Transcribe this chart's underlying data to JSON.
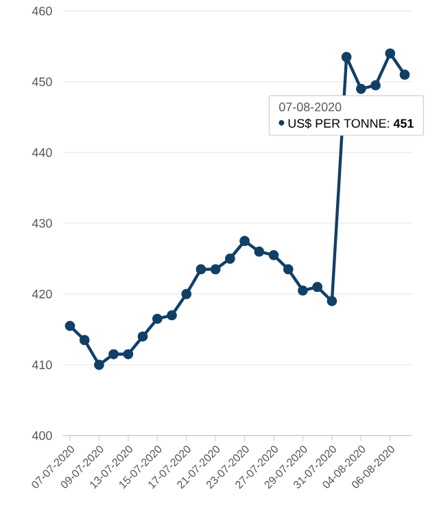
{
  "chart_data": {
    "type": "line",
    "categories": [
      "07-07-2020",
      null,
      "09-07-2020",
      null,
      "13-07-2020",
      null,
      "15-07-2020",
      null,
      "17-07-2020",
      null,
      "21-07-2020",
      null,
      "23-07-2020",
      null,
      "27-07-2020",
      null,
      "29-07-2020",
      null,
      "31-07-2020",
      null,
      "04-08-2020",
      null,
      "06-08-2020",
      null
    ],
    "series": [
      {
        "color": "#123f66",
        "values": [
          415.5,
          413.5,
          410,
          411.5,
          411.5,
          414,
          416.5,
          417,
          420,
          423.5,
          423.5,
          425,
          427.5,
          426,
          425.5,
          423.5,
          420.5,
          421,
          419,
          453.5,
          449,
          449.5,
          454,
          451
        ]
      }
    ],
    "ylim": [
      400,
      460
    ],
    "yticks": [
      400,
      410,
      420,
      430,
      440,
      450,
      460
    ],
    "grid": "y",
    "marker": "circle",
    "line_style": "solid",
    "annotations": [
      "07-08-2020",
      "US$ PER TONNE: **451**"
    ]
  }
}
